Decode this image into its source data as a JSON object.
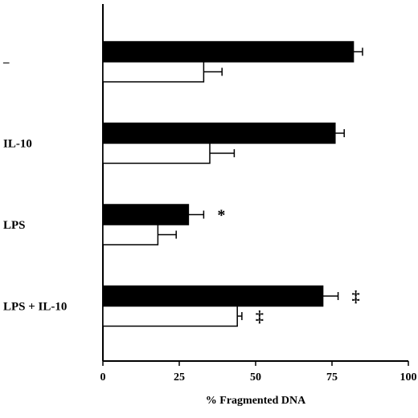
{
  "chart_data": {
    "type": "bar",
    "orientation": "horizontal",
    "categories": [
      "–",
      "IL-10",
      "LPS",
      "LPS + IL-10"
    ],
    "series": [
      {
        "fill": "#000000",
        "values": [
          82,
          76,
          28,
          72
        ],
        "errors": [
          3,
          3,
          5,
          5
        ]
      },
      {
        "fill": "#ffffff",
        "values": [
          33,
          35,
          18,
          44
        ],
        "errors": [
          6,
          8,
          6,
          1.5
        ]
      }
    ],
    "annotations": [
      {
        "category": 2,
        "series": 0,
        "text": "*"
      },
      {
        "category": 3,
        "series": 0,
        "text": "‡"
      },
      {
        "category": 3,
        "series": 1,
        "text": "‡"
      }
    ],
    "xlabel": "% Fragmented DNA",
    "xlim": [
      0,
      100
    ],
    "xticks": [
      0,
      25,
      50,
      75,
      100
    ],
    "grid": false,
    "legend": "none"
  }
}
